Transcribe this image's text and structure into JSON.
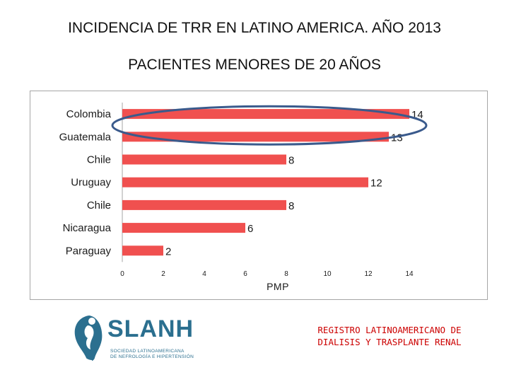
{
  "header": {
    "title": "INCIDENCIA DE TRR EN LATINO AMERICA. AÑO 2013",
    "subtitle": "PACIENTES MENORES DE 20 AÑOS"
  },
  "chart_data": {
    "type": "bar",
    "orientation": "horizontal",
    "categories": [
      "Colombia",
      "Guatemala",
      "Chile",
      "Uruguay",
      "Chile",
      "Nicaragua",
      "Paraguay"
    ],
    "values": [
      14,
      13,
      8,
      12,
      8,
      6,
      2
    ],
    "xlabel": "PMP",
    "ylabel": "",
    "xlim": [
      0,
      14
    ],
    "xticks": [
      0,
      2,
      4,
      6,
      8,
      10,
      12,
      14
    ],
    "bar_color": "#f0504f",
    "highlight_color": "#3a5a8c",
    "highlighted_categories": [
      "Colombia",
      "Guatemala"
    ],
    "grid": false,
    "legend": "none"
  },
  "logo": {
    "name": "SLANH",
    "line1": "SOCIEDAD LATINOAMERICANA",
    "line2": "DE NEFROLOGÍA E HIPERTENSIÓN"
  },
  "registry": {
    "line1": "REGISTRO LATINOAMERICANO DE",
    "line2": "DIALISIS Y TRASPLANTE RENAL"
  }
}
